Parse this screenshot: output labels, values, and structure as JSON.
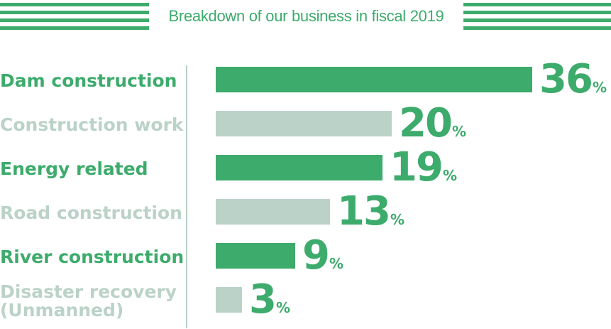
{
  "colors": {
    "accent": "#3dab6c",
    "muted": "#bbd2c8"
  },
  "chart_data": {
    "type": "bar",
    "orientation": "horizontal",
    "title": "Breakdown of our business in fiscal 2019",
    "unit": "%",
    "categories": [
      "Dam construction",
      "Construction work",
      "Energy related",
      "Road construction",
      "River construction",
      "Disaster recovery\n(Unmanned)"
    ],
    "values": [
      36,
      20,
      19,
      13,
      9,
      3
    ],
    "xlim": [
      0,
      36
    ]
  }
}
